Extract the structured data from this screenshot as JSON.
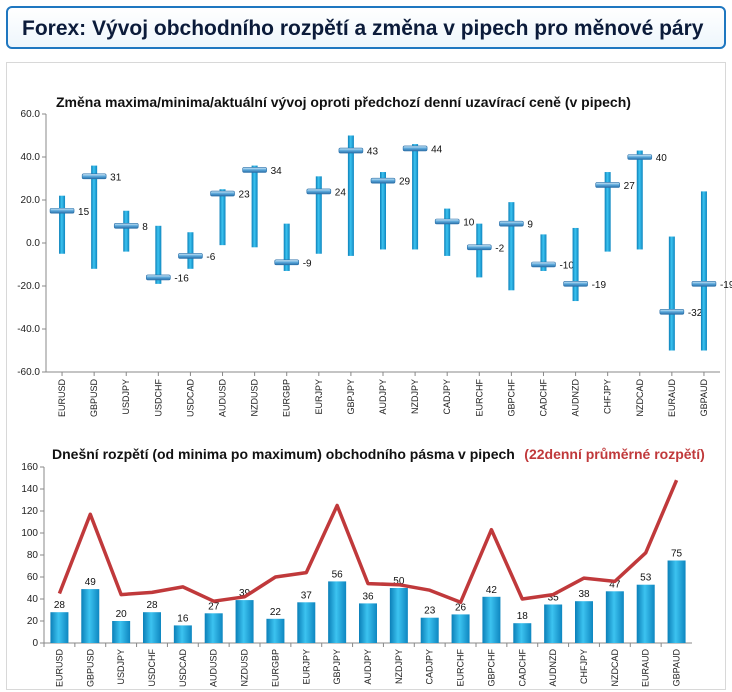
{
  "page_title": "Forex: Vývoj obchodního rozpětí a změna v pipech pro měnové páry",
  "chart_data": [
    {
      "type": "range",
      "title": "Změna maxima/minima/aktuální vývoj oproti předchozí denní uzavírací ceně (v pipech)",
      "categories": [
        "EURUSD",
        "GBPUSD",
        "USDJPY",
        "USDCHF",
        "USDCAD",
        "AUDUSD",
        "NZDUSD",
        "EURGBP",
        "EURJPY",
        "GBPJPY",
        "AUDJPY",
        "NZDJPY",
        "CADJPY",
        "EURCHF",
        "GBPCHF",
        "CADCHF",
        "AUDNZD",
        "CHFJPY",
        "NZDCAD",
        "EURAUD",
        "GBPAUD"
      ],
      "series": [
        {
          "name": "Max",
          "values": [
            22,
            36,
            15,
            8,
            5,
            25,
            36,
            9,
            31,
            50,
            33,
            46,
            16,
            9,
            19,
            4,
            7,
            33,
            43,
            3,
            24
          ]
        },
        {
          "name": "Min",
          "values": [
            -5,
            -12,
            -4,
            -19,
            -12,
            -1,
            -2,
            -13,
            -5,
            -6,
            -3,
            -3,
            -6,
            -16,
            -22,
            -13,
            -27,
            -4,
            -3,
            -50,
            -50
          ]
        },
        {
          "name": "Aktuální",
          "values": [
            15,
            31,
            8,
            -16,
            -6,
            23,
            34,
            -9,
            24,
            43,
            29,
            44,
            10,
            -2,
            9,
            -10,
            -19,
            27,
            40,
            -32,
            -19
          ]
        }
      ],
      "ylim": [
        -60,
        60
      ],
      "yticks": [
        "60.0",
        "40.0",
        "20.0",
        "0.0",
        "-20.0",
        "-40.0",
        "-60.0"
      ],
      "grid": false,
      "colors": {
        "bar": "#1a9fd8",
        "marker": "#3a86c4"
      }
    },
    {
      "type": "bar+line",
      "title": "Dnešní rozpětí (od minima po maximum) obchodního pásma v pipech",
      "title_extra": "(22denní průměrné rozpětí)",
      "categories": [
        "EURUSD",
        "GBPUSD",
        "USDJPY",
        "USDCHF",
        "USDCAD",
        "AUDUSD",
        "NZDUSD",
        "EURGBP",
        "EURJPY",
        "GBPJPY",
        "AUDJPY",
        "NZDJPY",
        "CADJPY",
        "EURCHF",
        "GBPCHF",
        "CADCHF",
        "AUDNZD",
        "CHFJPY",
        "NZDCAD",
        "EURAUD",
        "GBPAUD"
      ],
      "series": [
        {
          "name": "Dnešní rozpětí",
          "values": [
            28,
            49,
            20,
            28,
            16,
            27,
            39,
            22,
            37,
            56,
            36,
            50,
            23,
            26,
            42,
            18,
            35,
            38,
            47,
            53,
            75
          ]
        },
        {
          "name": "22denní průměrné rozpětí",
          "values": [
            45,
            117,
            44,
            46,
            51,
            38,
            42,
            60,
            64,
            125,
            54,
            53,
            48,
            37,
            103,
            40,
            44,
            59,
            56,
            82,
            148
          ]
        }
      ],
      "ylim": [
        0,
        160
      ],
      "yticks": [
        "160",
        "140",
        "120",
        "100",
        "80",
        "60",
        "40",
        "20",
        "0"
      ],
      "grid": false,
      "colors": {
        "bar": "#1a9fd8",
        "line": "#c0393b"
      }
    }
  ]
}
